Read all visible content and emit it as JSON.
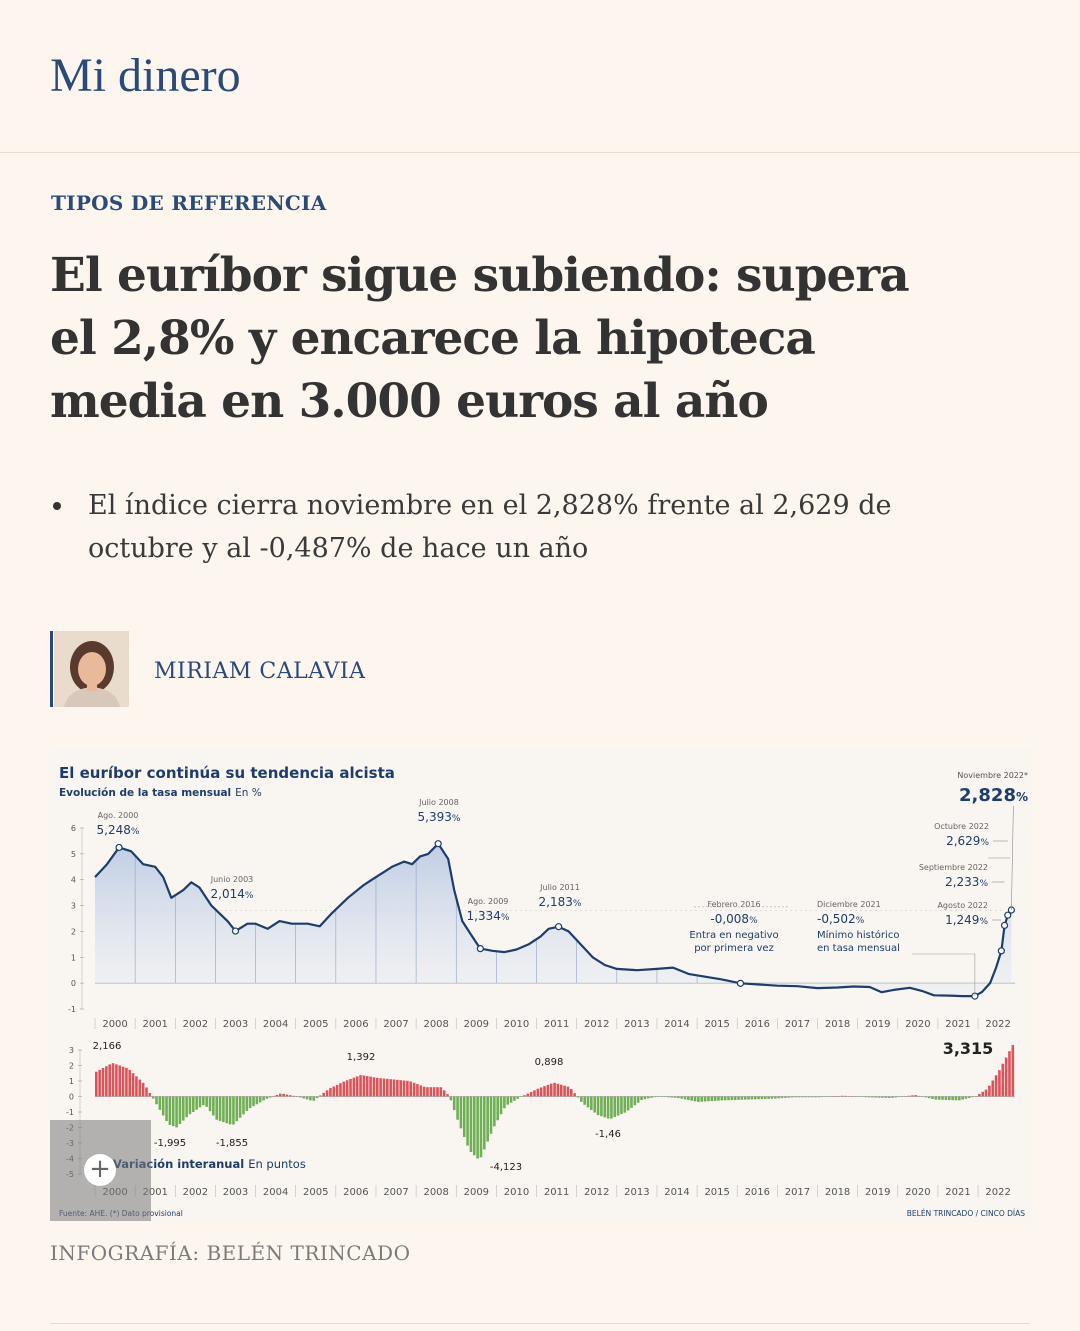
{
  "section": {
    "name": "Mi dinero"
  },
  "article": {
    "kicker": "TIPOS DE REFERENCIA",
    "headline": "El euríbor sigue subiendo: supera el 2,8% y encarece la hipoteca media en 3.000 euros al año",
    "summary": [
      "El índice cierra noviembre en el 2,828% frente al 2,629 de octubre y al -0,487% de hace un año"
    ],
    "author": {
      "name": "MIRIAM CALAVIA"
    },
    "credit": "INFOGRAFÍA: BELÉN TRINCADO"
  },
  "graphic": {
    "title": "El euríbor continúa su tendencia alcista",
    "subtitle_bold": "Evolución de la tasa mensual",
    "subtitle_unit": "En %",
    "lower_subtitle_bold": "Variación interanual",
    "lower_subtitle_unit": "En puntos",
    "source": "Fuente: AHE. (*) Dato provisional",
    "byline": "BELÉN TRINCADO / CINCO DÍAS",
    "expand_icon": "plus-icon"
  },
  "chart_data": [
    {
      "type": "area",
      "title": "El euríbor continúa su tendencia alcista",
      "ylabel": "Evolución de la tasa mensual En %",
      "ylim": [
        -1,
        6
      ],
      "yticks": [
        -1,
        0,
        1,
        2,
        3,
        4,
        5,
        6
      ],
      "categories": [
        "2000",
        "2001",
        "2002",
        "2003",
        "2004",
        "2005",
        "2006",
        "2007",
        "2008",
        "2009",
        "2010",
        "2011",
        "2012",
        "2013",
        "2014",
        "2015",
        "2016",
        "2017",
        "2018",
        "2019",
        "2020",
        "2021",
        "2022"
      ],
      "series": [
        {
          "points": [
            [
              2000.0,
              4.1
            ],
            [
              2000.3,
              4.6
            ],
            [
              2000.6,
              5.248
            ],
            [
              2000.9,
              5.1
            ],
            [
              2001.2,
              4.6
            ],
            [
              2001.5,
              4.5
            ],
            [
              2001.7,
              4.1
            ],
            [
              2001.9,
              3.3
            ],
            [
              2002.2,
              3.6
            ],
            [
              2002.4,
              3.9
            ],
            [
              2002.6,
              3.7
            ],
            [
              2002.9,
              3.0
            ],
            [
              2003.1,
              2.7
            ],
            [
              2003.3,
              2.4
            ],
            [
              2003.5,
              2.014
            ],
            [
              2003.8,
              2.3
            ],
            [
              2004.0,
              2.3
            ],
            [
              2004.3,
              2.1
            ],
            [
              2004.6,
              2.4
            ],
            [
              2004.9,
              2.3
            ],
            [
              2005.3,
              2.3
            ],
            [
              2005.6,
              2.2
            ],
            [
              2005.9,
              2.7
            ],
            [
              2006.3,
              3.3
            ],
            [
              2006.7,
              3.8
            ],
            [
              2007.0,
              4.1
            ],
            [
              2007.4,
              4.5
            ],
            [
              2007.7,
              4.7
            ],
            [
              2007.9,
              4.6
            ],
            [
              2008.1,
              4.9
            ],
            [
              2008.3,
              5.0
            ],
            [
              2008.55,
              5.393
            ],
            [
              2008.8,
              4.8
            ],
            [
              2008.95,
              3.6
            ],
            [
              2009.15,
              2.4
            ],
            [
              2009.4,
              1.8
            ],
            [
              2009.6,
              1.334
            ],
            [
              2009.9,
              1.25
            ],
            [
              2010.2,
              1.2
            ],
            [
              2010.5,
              1.3
            ],
            [
              2010.8,
              1.5
            ],
            [
              2011.1,
              1.8
            ],
            [
              2011.3,
              2.1
            ],
            [
              2011.55,
              2.183
            ],
            [
              2011.8,
              2.0
            ],
            [
              2012.1,
              1.5
            ],
            [
              2012.4,
              1.0
            ],
            [
              2012.7,
              0.7
            ],
            [
              2013.0,
              0.55
            ],
            [
              2013.5,
              0.5
            ],
            [
              2014.0,
              0.55
            ],
            [
              2014.4,
              0.6
            ],
            [
              2014.8,
              0.35
            ],
            [
              2015.2,
              0.25
            ],
            [
              2015.6,
              0.15
            ],
            [
              2016.08,
              -0.008
            ],
            [
              2016.5,
              -0.05
            ],
            [
              2017.0,
              -0.1
            ],
            [
              2017.5,
              -0.12
            ],
            [
              2018.0,
              -0.19
            ],
            [
              2018.5,
              -0.17
            ],
            [
              2018.9,
              -0.13
            ],
            [
              2019.3,
              -0.15
            ],
            [
              2019.6,
              -0.35
            ],
            [
              2019.9,
              -0.26
            ],
            [
              2020.3,
              -0.18
            ],
            [
              2020.6,
              -0.3
            ],
            [
              2020.9,
              -0.47
            ],
            [
              2021.3,
              -0.48
            ],
            [
              2021.6,
              -0.5
            ],
            [
              2021.92,
              -0.502
            ],
            [
              2022.1,
              -0.34
            ],
            [
              2022.3,
              0.0
            ],
            [
              2022.45,
              0.6
            ],
            [
              2022.58,
              1.249
            ],
            [
              2022.66,
              2.233
            ],
            [
              2022.74,
              2.629
            ],
            [
              2022.83,
              2.828
            ]
          ]
        }
      ],
      "annotations": [
        {
          "label": "Ago. 2000",
          "value": "5,248"
        },
        {
          "label": "Junio 2003",
          "value": "2,014"
        },
        {
          "label": "Julio 2008",
          "value": "5,393"
        },
        {
          "label": "Ago. 2009",
          "value": "1,334"
        },
        {
          "label": "Julio 2011",
          "value": "2,183"
        },
        {
          "label": "Febrero 2016",
          "value": "-0,008",
          "note": [
            "Entra en negativo",
            "por primera vez"
          ]
        },
        {
          "label": "Diciembre 2021",
          "value": "-0,502",
          "note": [
            "Mínimo histórico",
            "en tasa mensual"
          ]
        },
        {
          "label": "Agosto 2022",
          "value": "1,249"
        },
        {
          "label": "Septiembre 2022",
          "value": "2,233"
        },
        {
          "label": "Octubre 2022",
          "value": "2,629"
        },
        {
          "label": "Noviembre 2022*",
          "value": "2,828"
        }
      ],
      "percent_sign": "%"
    },
    {
      "type": "bar",
      "ylabel": "Variación interanual En puntos",
      "ylim": [
        -5,
        3
      ],
      "yticks": [
        -5,
        -4,
        -3,
        -2,
        -1,
        0,
        1,
        2,
        3
      ],
      "categories": [
        "2000",
        "2001",
        "2002",
        "2003",
        "2004",
        "2005",
        "2006",
        "2007",
        "2008",
        "2009",
        "2010",
        "2011",
        "2012",
        "2013",
        "2014",
        "2015",
        "2016",
        "2017",
        "2018",
        "2019",
        "2020",
        "2021",
        "2022"
      ],
      "series": [
        {
          "points": [
            [
              2000.0,
              1.6
            ],
            [
              2000.4,
              2.166
            ],
            [
              2000.8,
              1.8
            ],
            [
              2001.2,
              0.8
            ],
            [
              2001.5,
              -0.5
            ],
            [
              2001.8,
              -1.8
            ],
            [
              2002.0,
              -1.995
            ],
            [
              2002.3,
              -1.2
            ],
            [
              2002.7,
              -0.5
            ],
            [
              2003.0,
              -1.5
            ],
            [
              2003.4,
              -1.855
            ],
            [
              2003.8,
              -0.8
            ],
            [
              2004.2,
              -0.2
            ],
            [
              2004.6,
              0.2
            ],
            [
              2005.0,
              0.0
            ],
            [
              2005.4,
              -0.3
            ],
            [
              2005.8,
              0.5
            ],
            [
              2006.2,
              1.0
            ],
            [
              2006.6,
              1.392
            ],
            [
              2007.0,
              1.2
            ],
            [
              2007.4,
              1.1
            ],
            [
              2007.8,
              1.0
            ],
            [
              2008.2,
              0.6
            ],
            [
              2008.6,
              0.6
            ],
            [
              2008.8,
              0.0
            ],
            [
              2009.0,
              -1.5
            ],
            [
              2009.3,
              -3.5
            ],
            [
              2009.55,
              -4.123
            ],
            [
              2009.9,
              -2.0
            ],
            [
              2010.2,
              -0.6
            ],
            [
              2010.6,
              0.0
            ],
            [
              2011.0,
              0.5
            ],
            [
              2011.4,
              0.898
            ],
            [
              2011.8,
              0.6
            ],
            [
              2012.1,
              -0.4
            ],
            [
              2012.5,
              -1.2
            ],
            [
              2012.8,
              -1.46
            ],
            [
              2013.2,
              -1.0
            ],
            [
              2013.6,
              -0.2
            ],
            [
              2014.0,
              0.0
            ],
            [
              2014.5,
              -0.1
            ],
            [
              2015.0,
              -0.35
            ],
            [
              2015.6,
              -0.25
            ],
            [
              2016.2,
              -0.2
            ],
            [
              2016.8,
              -0.15
            ],
            [
              2017.4,
              -0.05
            ],
            [
              2018.0,
              -0.05
            ],
            [
              2018.6,
              0.05
            ],
            [
              2019.2,
              -0.05
            ],
            [
              2019.8,
              -0.1
            ],
            [
              2020.4,
              0.1
            ],
            [
              2020.9,
              -0.2
            ],
            [
              2021.5,
              -0.25
            ],
            [
              2021.9,
              0.0
            ],
            [
              2022.2,
              0.5
            ],
            [
              2022.5,
              1.7
            ],
            [
              2022.83,
              3.315
            ]
          ]
        }
      ],
      "annotations": [
        {
          "value": "2,166"
        },
        {
          "value": "-1,995"
        },
        {
          "value": "-1,855"
        },
        {
          "value": "1,392"
        },
        {
          "value": "-4,123"
        },
        {
          "value": "0,898"
        },
        {
          "value": "-1,46"
        },
        {
          "value": "3,315"
        }
      ],
      "colors": {
        "positive": "#d7373f",
        "negative": "#58a33a"
      }
    }
  ]
}
